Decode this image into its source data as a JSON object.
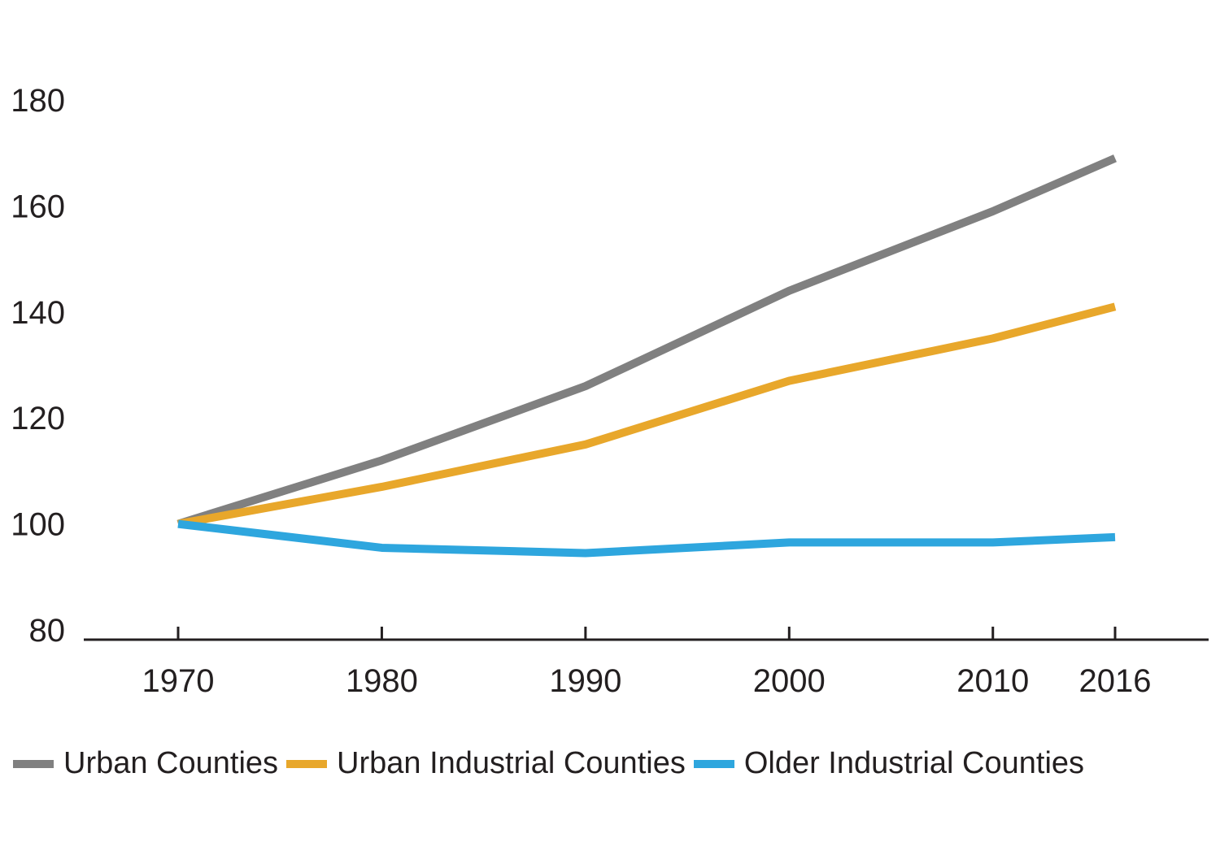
{
  "chart_data": {
    "type": "line",
    "title": "",
    "xlabel": "",
    "ylabel": "",
    "x": [
      "1970",
      "1980",
      "1990",
      "2000",
      "2010",
      "2016"
    ],
    "ylim": [
      80,
      180
    ],
    "yticks": [
      "80",
      "100",
      "120",
      "140",
      "160",
      "180"
    ],
    "grid": false,
    "legend_position": "bottom",
    "series": [
      {
        "name": "Urban Counties",
        "color": "#808080",
        "values": [
          100,
          112,
          126,
          144,
          159,
          169
        ]
      },
      {
        "name": "Urban Industrial Counties",
        "color": "#e8a72b",
        "values": [
          100,
          107,
          115,
          127,
          135,
          141
        ]
      },
      {
        "name": "Older Industrial Counties",
        "color": "#2ea6de",
        "values": [
          100,
          95.5,
          94.5,
          96.5,
          96.5,
          97.5
        ]
      }
    ]
  }
}
